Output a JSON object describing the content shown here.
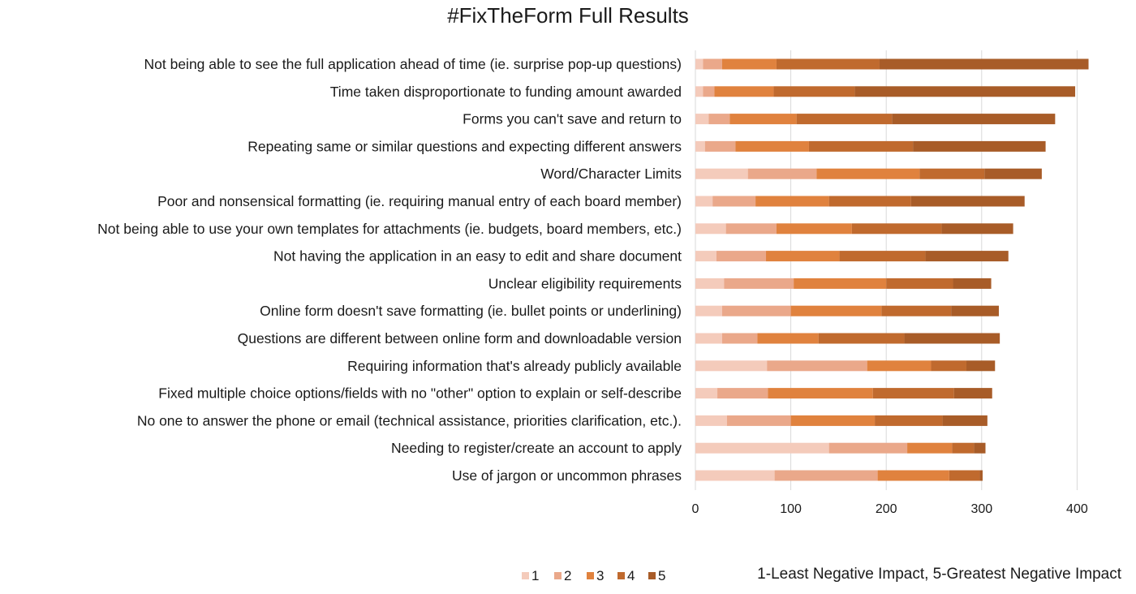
{
  "chart_data": {
    "type": "bar",
    "orientation": "horizontal",
    "stacked": true,
    "title": "#FixTheForm Full Results",
    "xlim": [
      0,
      420
    ],
    "x_ticks": [
      0,
      100,
      200,
      300,
      400
    ],
    "grid": "vertical",
    "legend_position": "bottom",
    "note": "1-Least Negative Impact, 5-Greatest Negative Impact",
    "categories": [
      "Not being able to see the full application ahead of time (ie. surprise pop-up questions)",
      "Time taken disproportionate to funding amount awarded",
      "Forms you can't save and return to",
      "Repeating same or similar questions and expecting different answers",
      "Word/Character Limits",
      "Poor and nonsensical formatting (ie. requiring manual entry of each board member)",
      "Not being able to use your own templates for attachments (ie. budgets, board members, etc.)",
      "Not having the application in an easy to edit and share document",
      "Unclear eligibility requirements",
      "Online form doesn't save formatting (ie. bullet points or underlining)",
      "Questions are different between online form and downloadable version",
      "Requiring information that's already publicly available",
      "Fixed multiple choice options/fields with no \"other\" option to explain or self-describe",
      "No one to answer the phone or email (technical assistance, priorities clarification, etc.).",
      "Needing to register/create an account to apply",
      "Use of jargon or uncommon phrases"
    ],
    "series": [
      {
        "name": "1",
        "color": "#f4cbbb",
        "values": [
          8,
          8,
          14,
          10,
          55,
          18,
          32,
          22,
          30,
          28,
          28,
          75,
          23,
          33,
          140,
          83
        ]
      },
      {
        "name": "2",
        "color": "#eaa88a",
        "values": [
          20,
          12,
          22,
          32,
          72,
          45,
          53,
          52,
          73,
          72,
          37,
          105,
          53,
          67,
          82,
          108
        ]
      },
      {
        "name": "3",
        "color": "#e0823e",
        "values": [
          57,
          62,
          70,
          77,
          108,
          77,
          79,
          77,
          97,
          95,
          64,
          67,
          110,
          88,
          47,
          75
        ]
      },
      {
        "name": "4",
        "color": "#c06a2e",
        "values": [
          108,
          85,
          100,
          109,
          68,
          86,
          94,
          90,
          70,
          73,
          90,
          37,
          85,
          71,
          23,
          32
        ]
      },
      {
        "name": "5",
        "color": "#a85c28",
        "values": [
          219,
          231,
          171,
          139,
          60,
          119,
          75,
          87,
          40,
          50,
          100,
          30,
          40,
          47,
          12,
          3
        ]
      }
    ]
  }
}
